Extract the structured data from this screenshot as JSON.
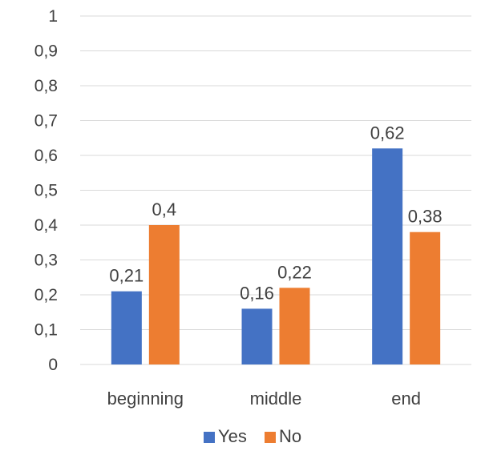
{
  "chart_data": {
    "type": "bar",
    "categories": [
      "beginning",
      "middle",
      "end"
    ],
    "series": [
      {
        "name": "Yes",
        "values": [
          0.21,
          0.16,
          0.62
        ],
        "color": "#4472C4"
      },
      {
        "name": "No",
        "values": [
          0.4,
          0.22,
          0.38
        ],
        "color": "#ED7D31"
      }
    ],
    "data_labels": [
      [
        "0,21",
        "0,16",
        "0,62"
      ],
      [
        "0,4",
        "0,22",
        "0,38"
      ]
    ],
    "y_ticks": [
      0,
      0.1,
      0.2,
      0.3,
      0.4,
      0.5,
      0.6,
      0.7,
      0.8,
      0.9,
      1
    ],
    "y_tick_labels": [
      "0",
      "0,1",
      "0,2",
      "0,3",
      "0,4",
      "0,5",
      "0,6",
      "0,7",
      "0,8",
      "0,9",
      "1"
    ],
    "ylim": [
      0,
      1
    ],
    "grid": true,
    "legend_position": "bottom",
    "title": "",
    "xlabel": "",
    "ylabel": ""
  }
}
